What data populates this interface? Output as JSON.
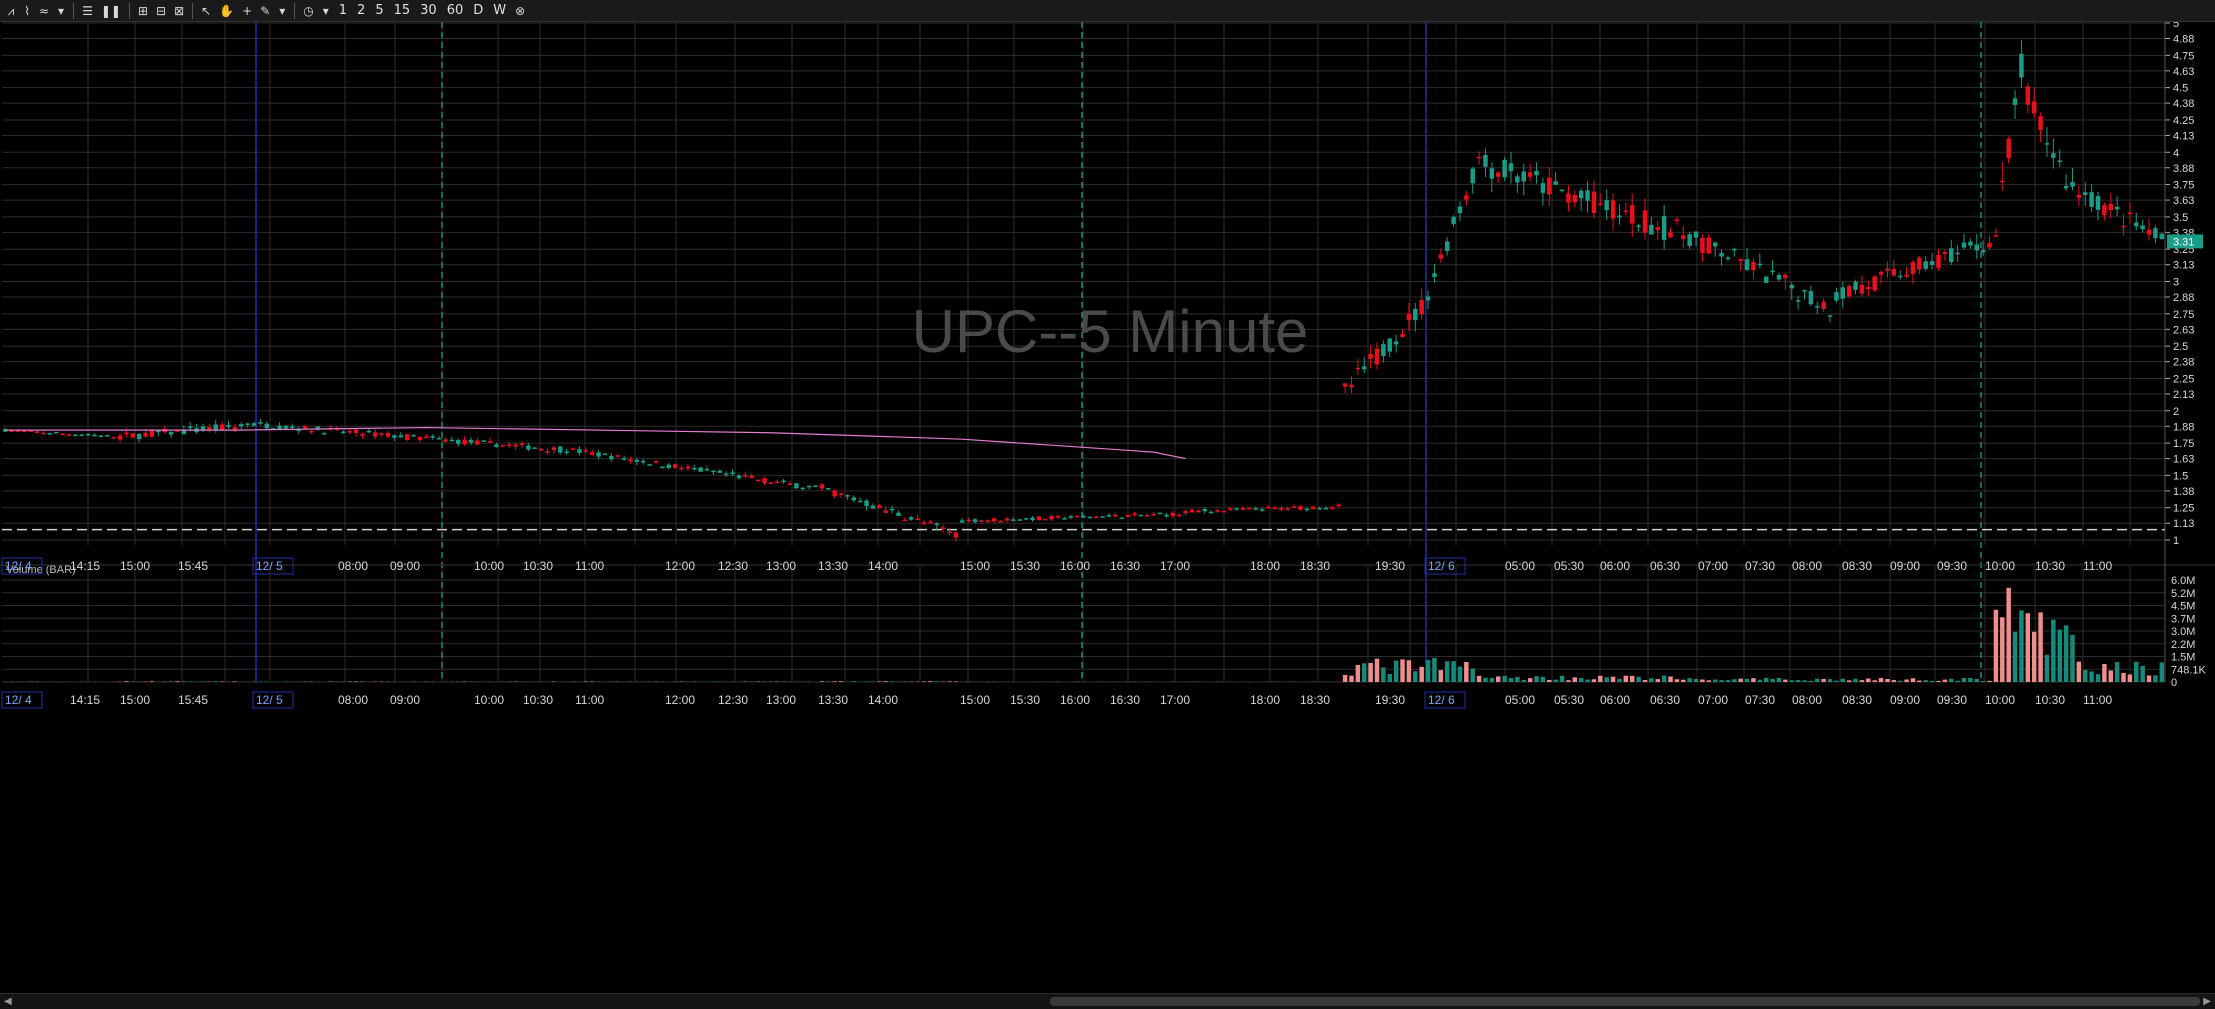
{
  "toolbar": {
    "items": [
      {
        "name": "chart-style-icon",
        "glyph": "⩘"
      },
      {
        "name": "drawing-icon",
        "glyph": "⌇"
      },
      {
        "name": "study-icon",
        "glyph": "≈"
      },
      {
        "name": "dropdown-icon",
        "glyph": "▾"
      },
      {
        "sep": true
      },
      {
        "name": "menu-icon",
        "glyph": "☰"
      },
      {
        "name": "pause-icon",
        "glyph": "❚❚"
      },
      {
        "sep": true
      },
      {
        "name": "grid-icon",
        "glyph": "⊞"
      },
      {
        "name": "layout-icon",
        "glyph": "⊟"
      },
      {
        "name": "zoom-icon",
        "glyph": "⊠"
      },
      {
        "sep": true
      },
      {
        "name": "pointer-icon",
        "glyph": "↖"
      },
      {
        "name": "hand-icon",
        "glyph": "✋"
      },
      {
        "name": "crosshair-icon",
        "glyph": "+"
      },
      {
        "name": "pencil-icon",
        "glyph": "✎"
      },
      {
        "name": "dropdown-icon-2",
        "glyph": "▾"
      },
      {
        "sep": true
      },
      {
        "name": "clock-icon",
        "glyph": "◷"
      },
      {
        "name": "dropdown-icon-3",
        "glyph": "▾"
      }
    ],
    "intervals": [
      "1",
      "2",
      "5",
      "15",
      "30",
      "60",
      "D",
      "W"
    ],
    "close_icon": "⊗"
  },
  "chart_data": {
    "type": "candlestick",
    "title": "UPC--5 Minute",
    "price_axis": {
      "ticks": [
        "5",
        "4.88",
        "4.75",
        "4.63",
        "4.5",
        "4.38",
        "4.25",
        "4.13",
        "4",
        "3.88",
        "3.75",
        "3.63",
        "3.5",
        "3.38",
        "3.25",
        "3.13",
        "3",
        "2.88",
        "2.75",
        "2.63",
        "2.5",
        "2.38",
        "2.25",
        "2.13",
        "2",
        "1.88",
        "1.75",
        "1.63",
        "1.5",
        "1.38",
        "1.25",
        "1.13",
        "1"
      ],
      "ylim": [
        1,
        5
      ],
      "last_price_label": "3.31",
      "reference_line": 1.08
    },
    "volume_axis": {
      "label": "Volume (BAR)",
      "ticks": [
        "6.0M",
        "5.2M",
        "4.5M",
        "3.7M",
        "3.0M",
        "2.2M",
        "1.5M",
        "748.1K",
        "0"
      ],
      "ylim": [
        0,
        6000000
      ]
    },
    "time_axis": {
      "labels": [
        "12/ 4",
        "14:15",
        "15:00",
        "15:45",
        "12/ 5",
        "08:00",
        "09:00",
        "10:00",
        "10:30",
        "11:00",
        "12:00",
        "12:30",
        "13:00",
        "13:30",
        "14:00",
        "15:00",
        "15:30",
        "16:00",
        "16:30",
        "17:00",
        "18:00",
        "18:30",
        "19:30",
        "12/ 6",
        "05:00",
        "05:30",
        "06:00",
        "06:30",
        "07:00",
        "07:30",
        "08:00",
        "08:30",
        "09:00",
        "09:30",
        "10:00",
        "10:30",
        "11:00"
      ],
      "date_labels": [
        "12/ 4",
        "12/ 5",
        "12/ 6"
      ]
    },
    "segments": [
      {
        "n": 18,
        "start": 1.85,
        "end": 1.8,
        "vol": 12000,
        "noise": 0.015
      },
      {
        "n": 20,
        "start": 1.8,
        "end": 1.88,
        "vol": 30000,
        "noise": 0.04
      },
      {
        "n": 50,
        "start": 1.9,
        "end": 1.7,
        "vol": 18000,
        "noise": 0.03
      },
      {
        "n": 40,
        "start": 1.7,
        "end": 1.4,
        "vol": 20000,
        "noise": 0.03
      },
      {
        "n": 22,
        "start": 1.4,
        "end": 1.05,
        "vol": 30000,
        "noise": 0.04
      },
      {
        "n": 35,
        "start": 1.15,
        "end": 1.2,
        "vol": 10000,
        "noise": 0.02
      },
      {
        "n": 25,
        "start": 1.22,
        "end": 1.26,
        "vol": 8000,
        "noise": 0.02
      },
      {
        "n": 12,
        "start": 2.15,
        "end": 2.75,
        "vol": 900000,
        "noise": 0.1
      },
      {
        "n": 10,
        "start": 2.8,
        "end": 3.95,
        "vol": 900000,
        "noise": 0.1
      },
      {
        "n": 30,
        "start": 3.9,
        "end": 3.4,
        "vol": 250000,
        "noise": 0.12
      },
      {
        "n": 25,
        "start": 3.4,
        "end": 2.8,
        "vol": 150000,
        "noise": 0.1
      },
      {
        "n": 25,
        "start": 2.9,
        "end": 3.3,
        "vol": 150000,
        "noise": 0.09
      },
      {
        "n": 5,
        "start": 3.35,
        "end": 4.65,
        "vol": 4800000,
        "noise": 0.2
      },
      {
        "n": 8,
        "start": 4.4,
        "end": 3.7,
        "vol": 2600000,
        "noise": 0.15
      },
      {
        "n": 14,
        "start": 3.7,
        "end": 3.31,
        "vol": 800000,
        "noise": 0.1
      }
    ],
    "vwap": [
      [
        0,
        1.85
      ],
      [
        36,
        1.85
      ],
      [
        66,
        1.87
      ],
      [
        120,
        1.83
      ],
      [
        150,
        1.78
      ],
      [
        180,
        1.68
      ],
      [
        185,
        1.63
      ]
    ],
    "colors": {
      "up": "#1a9c86",
      "down": "#e8101a",
      "vol_up": "#168a7a",
      "vol_down": "#ef8c8c",
      "vwap": "#e57bd0",
      "grid": "#2c2c2c",
      "axis_text": "#d8d8d8",
      "date_text": "#7aa7ff",
      "session_line": "#1f2fa8",
      "mid_line": "#1a8a7a",
      "title": "#4a4a4a"
    }
  }
}
